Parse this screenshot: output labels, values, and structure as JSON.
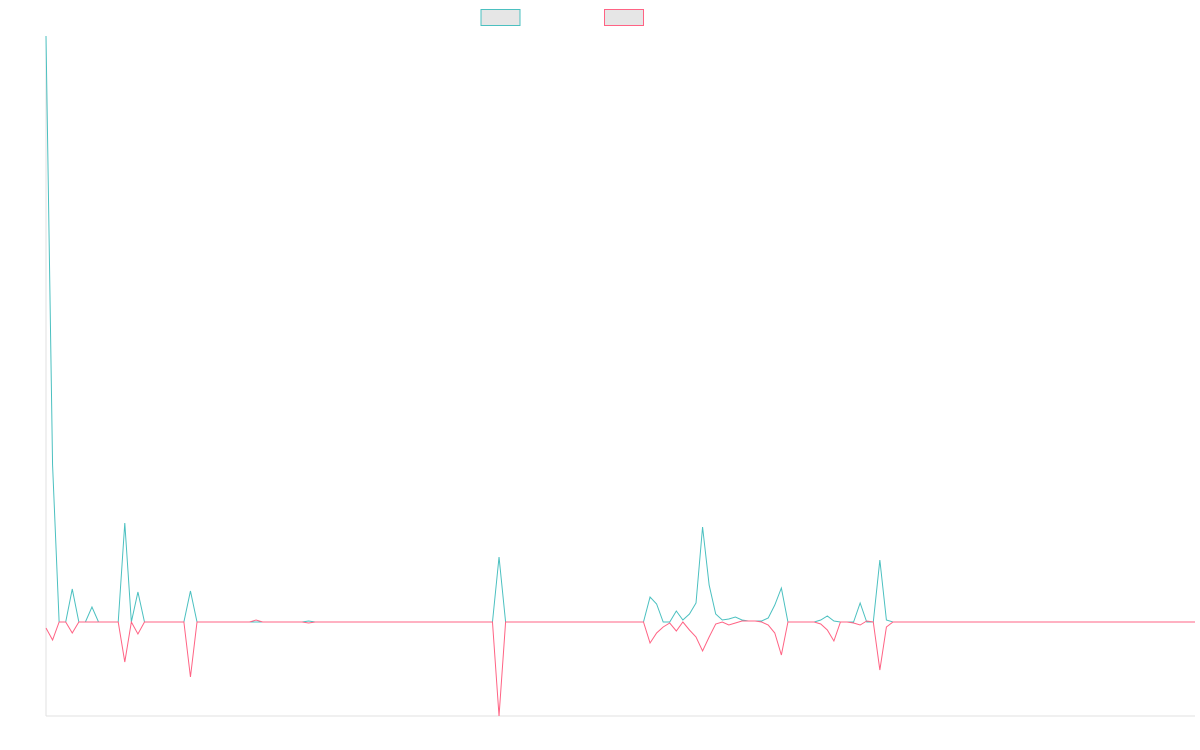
{
  "chart_data": {
    "type": "line",
    "series": [
      {
        "color": "#4bc0c0",
        "values": [
          586,
          157,
          0,
          0,
          33,
          0,
          0,
          15,
          0,
          0,
          0,
          0,
          99,
          0,
          30,
          0,
          0,
          0,
          0,
          0,
          0,
          0,
          31,
          0,
          0,
          0,
          0,
          0,
          0,
          0,
          0,
          0,
          0,
          0,
          0,
          0,
          0,
          0,
          0,
          0,
          1,
          0,
          0,
          0,
          0,
          0,
          0,
          0,
          0,
          0,
          0,
          0,
          0,
          0,
          0,
          0,
          0,
          0,
          0,
          0,
          0,
          0,
          0,
          0,
          0,
          0,
          0,
          0,
          0,
          65,
          0,
          0,
          0,
          0,
          0,
          0,
          0,
          0,
          0,
          0,
          0,
          0,
          0,
          0,
          0,
          0,
          0,
          0,
          0,
          0,
          0,
          0,
          25,
          18,
          0,
          0,
          11,
          2,
          8,
          19,
          95,
          37,
          8,
          2,
          3,
          5,
          2,
          1,
          1,
          1,
          4,
          17,
          34,
          0,
          0,
          0,
          0,
          0,
          2,
          6,
          1,
          0,
          0,
          0,
          19,
          0,
          0,
          62,
          2,
          0,
          0,
          0,
          0,
          0,
          0,
          0,
          0,
          0,
          0,
          0,
          0,
          0,
          0,
          0,
          0,
          0,
          0,
          0,
          0,
          0,
          0,
          0,
          0,
          0,
          0,
          0,
          0,
          0,
          0,
          0,
          0,
          0,
          0,
          0,
          0,
          0,
          0,
          0,
          0,
          0,
          0,
          0,
          0,
          0,
          0,
          0
        ]
      },
      {
        "color": "#ff6384",
        "values": [
          -6,
          -18,
          0,
          0,
          -11,
          0,
          0,
          0,
          0,
          0,
          0,
          0,
          -40,
          0,
          -12,
          0,
          0,
          0,
          0,
          0,
          0,
          0,
          -55,
          0,
          0,
          0,
          0,
          0,
          0,
          0,
          0,
          0,
          2,
          0,
          0,
          0,
          0,
          0,
          0,
          0,
          -1,
          0,
          0,
          0,
          0,
          0,
          0,
          0,
          0,
          0,
          0,
          0,
          0,
          0,
          0,
          0,
          0,
          0,
          0,
          0,
          0,
          0,
          0,
          0,
          0,
          0,
          0,
          0,
          0,
          -94,
          0,
          0,
          0,
          0,
          0,
          0,
          0,
          0,
          0,
          0,
          0,
          0,
          0,
          0,
          0,
          0,
          0,
          0,
          0,
          0,
          0,
          0,
          -21,
          -11,
          -5,
          -1,
          -9,
          0,
          -8,
          -15,
          -29,
          -15,
          -2,
          0,
          -3,
          -1,
          1,
          1,
          1,
          0,
          -3,
          -11,
          -33,
          0,
          0,
          0,
          0,
          0,
          -2,
          -8,
          -19,
          0,
          0,
          -1,
          -3,
          1,
          0,
          -48,
          -5,
          0,
          0,
          0,
          0,
          0,
          0,
          0,
          0,
          0,
          0,
          0,
          0,
          0,
          0,
          0,
          0,
          0,
          0,
          0,
          0,
          0,
          0,
          0,
          0,
          0,
          0,
          0,
          0,
          0,
          0,
          0,
          0,
          0,
          0,
          0,
          0,
          0,
          0,
          0,
          0,
          0,
          0,
          0,
          0,
          0,
          0,
          0
        ]
      }
    ],
    "ylim": [
      -94,
      586
    ]
  }
}
